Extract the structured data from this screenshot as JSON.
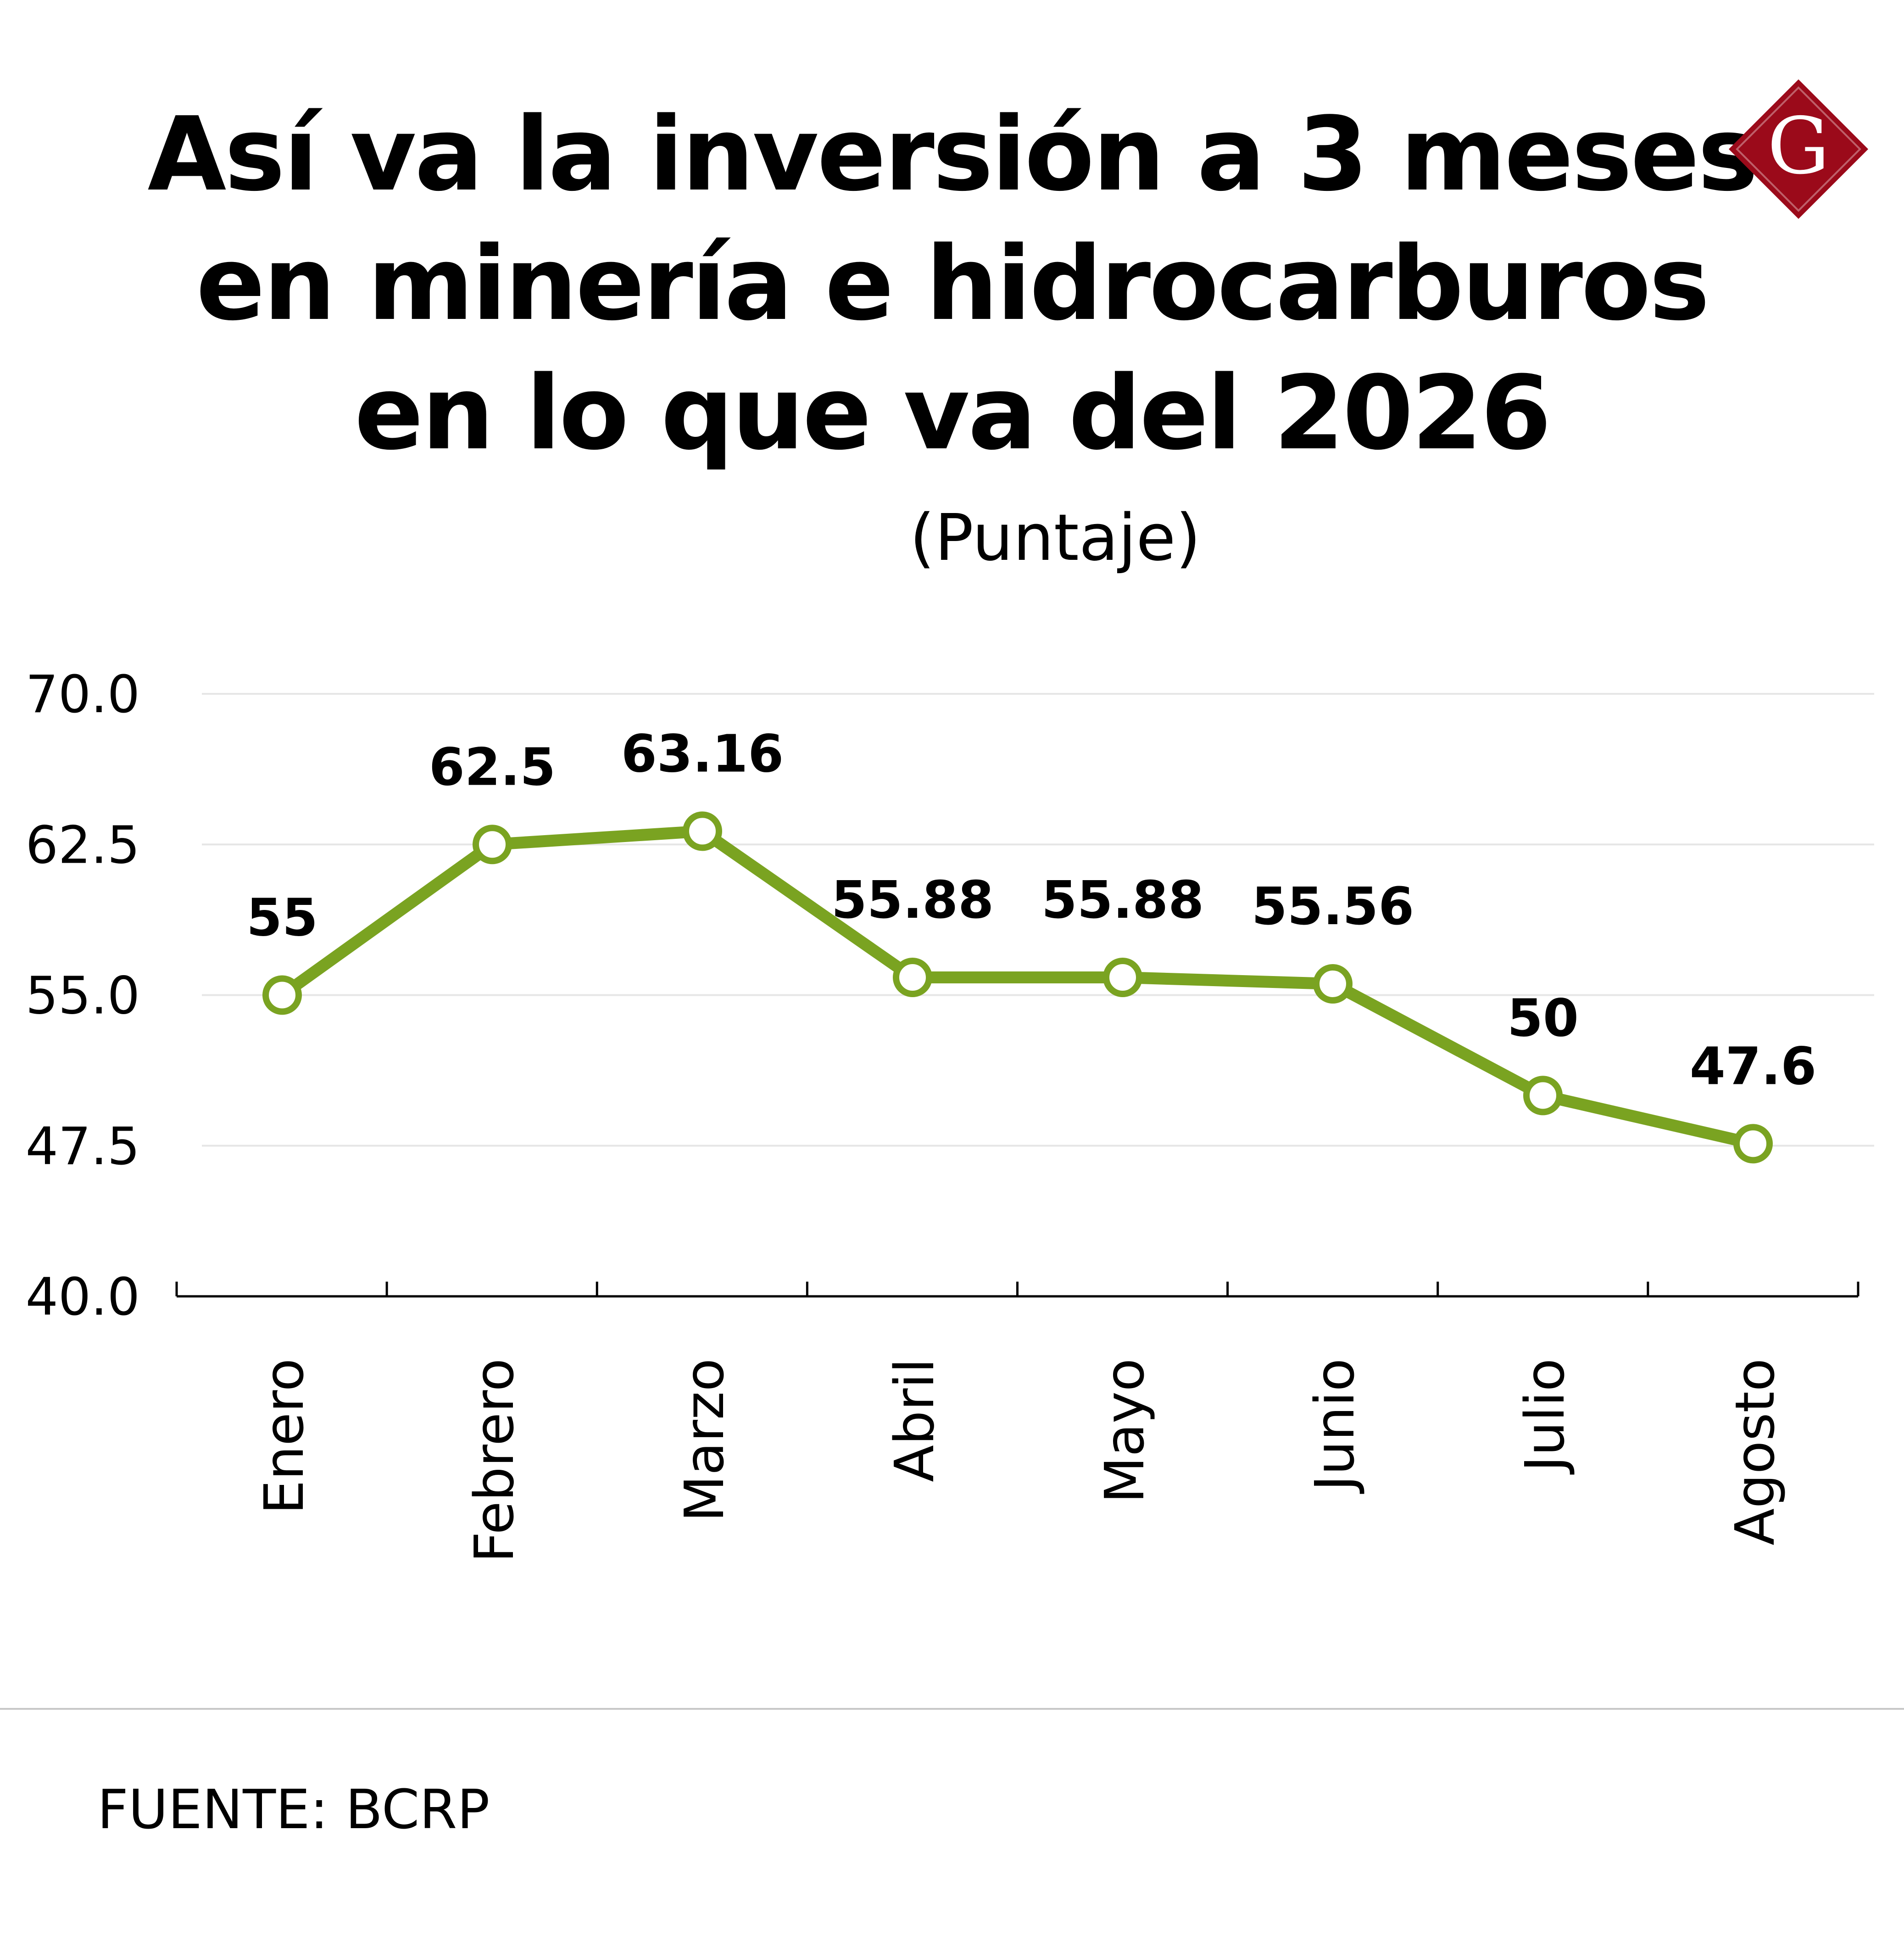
{
  "title_lines": [
    "Así va la inversión a 3 meses",
    "en minería e hidrocarburos",
    "en lo que va del 2026"
  ],
  "subtitle": "(Puntaje)",
  "source": "FUENTE: BCRP",
  "logo": {
    "letter": "G",
    "icon": "brand-logo-icon",
    "color": "#9b0a1a"
  },
  "colors": {
    "line": "#7aa321",
    "marker_fill": "#ffffff",
    "grid": "#e6e6e6",
    "axis": "#000000"
  },
  "chart_data": {
    "type": "line",
    "categories": [
      "Enero",
      "Febrero",
      "Marzo",
      "Abril",
      "Mayo",
      "Junio",
      "Julio",
      "Agosto"
    ],
    "series": [
      {
        "values": [
          55,
          62.5,
          63.16,
          55.88,
          55.88,
          55.56,
          50,
          47.6
        ]
      }
    ],
    "data_labels": [
      "55",
      "62.5",
      "63.16",
      "55.88",
      "55.88",
      "55.56",
      "50",
      "47.6"
    ],
    "yticks": [
      "40.0",
      "47.5",
      "55.0",
      "62.5",
      "70.0"
    ],
    "ylim": [
      40,
      70
    ],
    "grid": true,
    "xlabel": "",
    "ylabel": ""
  }
}
